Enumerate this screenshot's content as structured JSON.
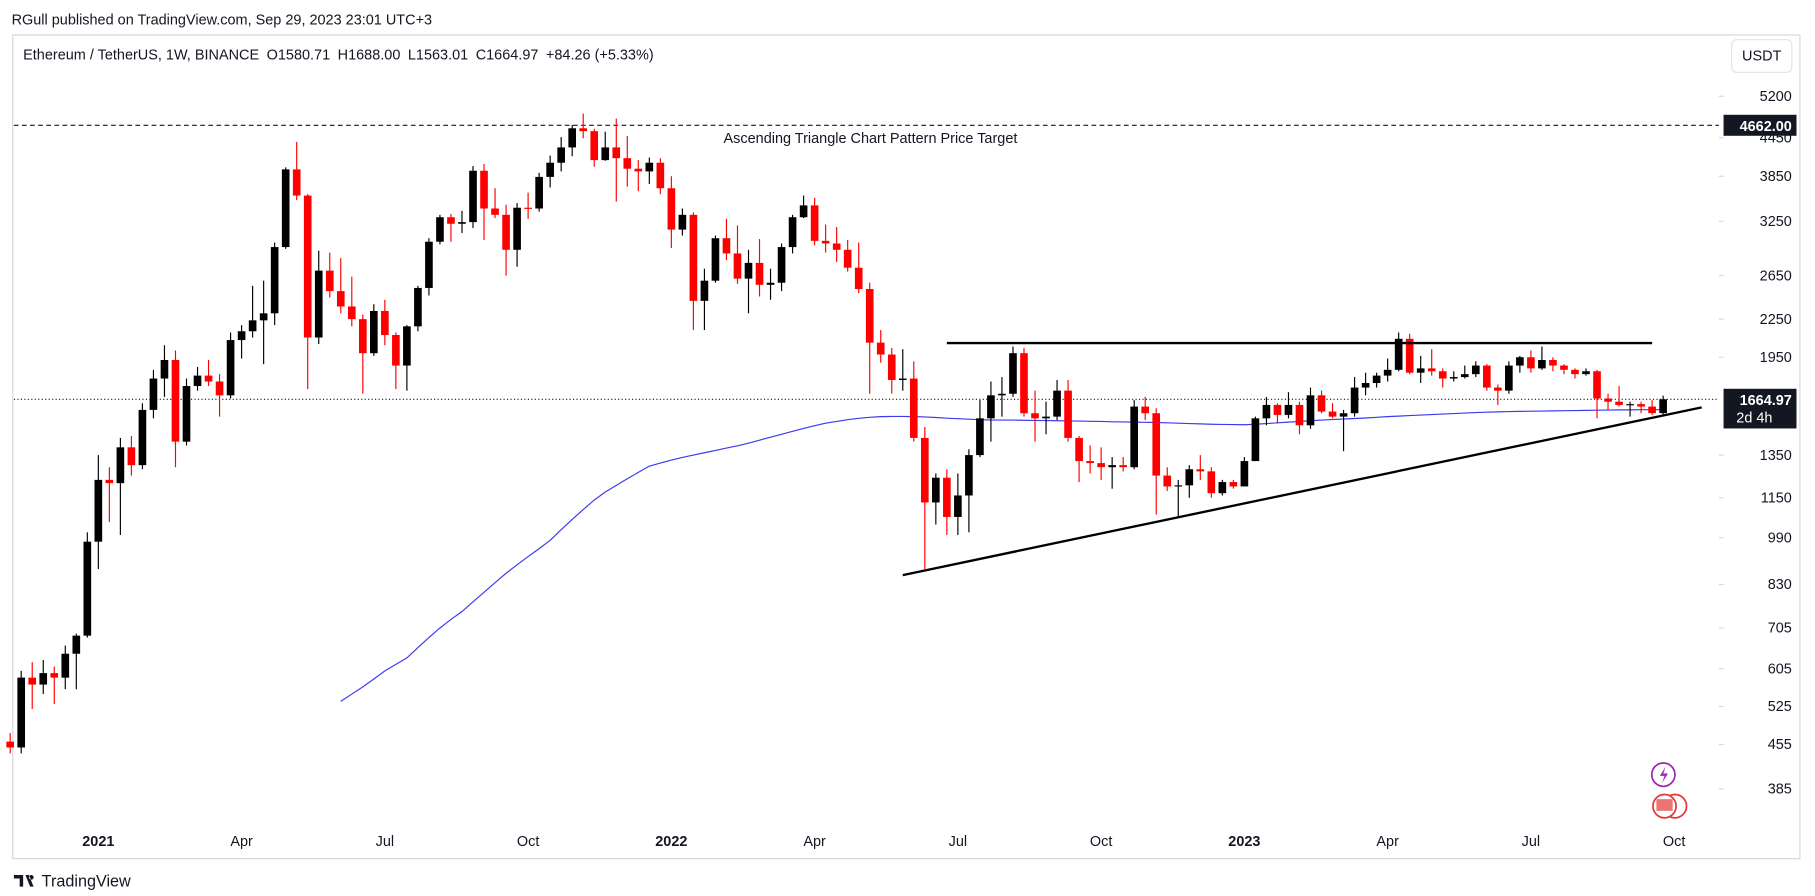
{
  "chart_data": {
    "type": "candlestick",
    "caption": "RGull published on TradingView.com, Sep 29, 2023 23:01 UTC+3",
    "title": "Ethereum / TetherUS, 1W, BINANCE",
    "ohlc_letters": [
      "O",
      "H",
      "L",
      "C"
    ],
    "ohlc_labels": [
      "1580.71",
      "1688.00",
      "1563.01",
      "1664.97"
    ],
    "change": "+84.26 (+5.33%)",
    "currency": "USDT",
    "countdown": "2d 4h",
    "brand": "TradingView",
    "annotation": "Ascending Triangle Chart Pattern Price Target",
    "target": {
      "value": 4662,
      "label": "4662.00"
    },
    "log": true,
    "up_color": "#000000",
    "down_color": "#ff0000",
    "ylim": [
      335,
      6545
    ],
    "yticks": [
      385,
      455,
      525,
      605,
      705,
      830,
      990,
      1150,
      1350,
      1950,
      2250,
      2650,
      3250,
      3850,
      4450,
      5200
    ],
    "categories": [
      null,
      null,
      null,
      null,
      null,
      null,
      null,
      null,
      "2021",
      null,
      null,
      null,
      null,
      null,
      null,
      null,
      null,
      null,
      null,
      null,
      null,
      "Apr",
      null,
      null,
      null,
      null,
      null,
      null,
      null,
      null,
      null,
      null,
      null,
      null,
      "Jul",
      null,
      null,
      null,
      null,
      null,
      null,
      null,
      null,
      null,
      null,
      null,
      null,
      "Oct",
      null,
      null,
      null,
      null,
      null,
      null,
      null,
      null,
      null,
      null,
      null,
      null,
      "2022",
      null,
      null,
      null,
      null,
      null,
      null,
      null,
      null,
      null,
      null,
      null,
      null,
      "Apr",
      null,
      null,
      null,
      null,
      null,
      null,
      null,
      null,
      null,
      null,
      null,
      null,
      "Jul",
      null,
      null,
      null,
      null,
      null,
      null,
      null,
      null,
      null,
      null,
      null,
      null,
      "Oct",
      null,
      null,
      null,
      null,
      null,
      null,
      null,
      null,
      null,
      null,
      null,
      null,
      "2023",
      null,
      null,
      null,
      null,
      null,
      null,
      null,
      null,
      null,
      null,
      null,
      null,
      "Apr",
      null,
      null,
      null,
      null,
      null,
      null,
      null,
      null,
      null,
      null,
      null,
      null,
      "Jul",
      null,
      null,
      null,
      null,
      null,
      null,
      null,
      null,
      null,
      null,
      null,
      null,
      "Oct"
    ],
    "candles": [
      [
        460,
        475,
        440,
        450
      ],
      [
        450,
        600,
        440,
        585
      ],
      [
        585,
        620,
        520,
        570
      ],
      [
        570,
        625,
        550,
        595
      ],
      [
        595,
        610,
        530,
        585
      ],
      [
        585,
        660,
        560,
        640
      ],
      [
        640,
        690,
        560,
        685
      ],
      [
        685,
        1010,
        680,
        975
      ],
      [
        975,
        1350,
        880,
        1230
      ],
      [
        1230,
        1290,
        1050,
        1215
      ],
      [
        1215,
        1440,
        1000,
        1390
      ],
      [
        1390,
        1450,
        1250,
        1300
      ],
      [
        1300,
        1640,
        1280,
        1600
      ],
      [
        1600,
        1860,
        1550,
        1800
      ],
      [
        1800,
        2040,
        1680,
        1930
      ],
      [
        1930,
        2000,
        1290,
        1420
      ],
      [
        1420,
        1800,
        1400,
        1750
      ],
      [
        1750,
        1880,
        1720,
        1820
      ],
      [
        1820,
        1930,
        1750,
        1780
      ],
      [
        1780,
        1830,
        1560,
        1690
      ],
      [
        1690,
        2140,
        1670,
        2080
      ],
      [
        2080,
        2200,
        1940,
        2150
      ],
      [
        2150,
        2550,
        2100,
        2240
      ],
      [
        2240,
        2600,
        1900,
        2300
      ],
      [
        2300,
        3000,
        2200,
        2950
      ],
      [
        2950,
        3980,
        2930,
        3950
      ],
      [
        3950,
        4380,
        3520,
        3580
      ],
      [
        3580,
        3600,
        1730,
        2100
      ],
      [
        2100,
        2910,
        2050,
        2700
      ],
      [
        2700,
        2890,
        2440,
        2500
      ],
      [
        2500,
        2830,
        2300,
        2360
      ],
      [
        2360,
        2640,
        2190,
        2250
      ],
      [
        2250,
        2290,
        1700,
        1980
      ],
      [
        1980,
        2380,
        1960,
        2320
      ],
      [
        2320,
        2420,
        2040,
        2120
      ],
      [
        2120,
        2140,
        1730,
        1890
      ],
      [
        1890,
        2200,
        1720,
        2190
      ],
      [
        2190,
        2550,
        2150,
        2530
      ],
      [
        2530,
        3050,
        2460,
        3010
      ],
      [
        3010,
        3330,
        2980,
        3300
      ],
      [
        3300,
        3340,
        3010,
        3220
      ],
      [
        3220,
        3380,
        3110,
        3240
      ],
      [
        3240,
        4000,
        3170,
        3930
      ],
      [
        3930,
        4030,
        3030,
        3410
      ],
      [
        3410,
        3680,
        3290,
        3330
      ],
      [
        3330,
        3460,
        2650,
        2920
      ],
      [
        2920,
        3480,
        2740,
        3420
      ],
      [
        3420,
        3620,
        3280,
        3410
      ],
      [
        3410,
        3900,
        3370,
        3840
      ],
      [
        3840,
        4160,
        3690,
        4050
      ],
      [
        4050,
        4460,
        3920,
        4290
      ],
      [
        4290,
        4670,
        4150,
        4610
      ],
      [
        4610,
        4870,
        4440,
        4560
      ],
      [
        4560,
        4600,
        3990,
        4090
      ],
      [
        4090,
        4550,
        4080,
        4290
      ],
      [
        4290,
        4780,
        3500,
        4120
      ],
      [
        4120,
        4480,
        3700,
        3960
      ],
      [
        3960,
        4090,
        3640,
        3920
      ],
      [
        3920,
        4130,
        3740,
        4050
      ],
      [
        4050,
        4120,
        3600,
        3680
      ],
      [
        3680,
        3850,
        2940,
        3150
      ],
      [
        3150,
        3410,
        3080,
        3330
      ],
      [
        3330,
        3360,
        2160,
        2410
      ],
      [
        2410,
        2720,
        2160,
        2600
      ],
      [
        2600,
        3080,
        2580,
        3050
      ],
      [
        3050,
        3280,
        2810,
        2880
      ],
      [
        2880,
        3200,
        2570,
        2620
      ],
      [
        2620,
        2920,
        2300,
        2780
      ],
      [
        2780,
        3040,
        2450,
        2560
      ],
      [
        2560,
        2720,
        2420,
        2580
      ],
      [
        2580,
        2990,
        2500,
        2950
      ],
      [
        2950,
        3330,
        2880,
        3300
      ],
      [
        3300,
        3580,
        3290,
        3450
      ],
      [
        3450,
        3550,
        2970,
        3020
      ],
      [
        3020,
        3210,
        2890,
        2990
      ],
      [
        2990,
        3180,
        2790,
        2920
      ],
      [
        2920,
        3030,
        2690,
        2730
      ],
      [
        2730,
        3000,
        2480,
        2520
      ],
      [
        2520,
        2580,
        1700,
        2060
      ],
      [
        2060,
        2160,
        1910,
        1970
      ],
      [
        1970,
        2020,
        1700,
        1790
      ],
      [
        1790,
        2010,
        1720,
        1800
      ],
      [
        1800,
        1920,
        1420,
        1440
      ],
      [
        1440,
        1500,
        880,
        1130
      ],
      [
        1130,
        1260,
        1040,
        1240
      ],
      [
        1240,
        1280,
        1000,
        1070
      ],
      [
        1070,
        1260,
        1000,
        1160
      ],
      [
        1160,
        1380,
        1010,
        1350
      ],
      [
        1350,
        1660,
        1340,
        1550
      ],
      [
        1550,
        1780,
        1420,
        1690
      ],
      [
        1690,
        1810,
        1560,
        1700
      ],
      [
        1700,
        2030,
        1680,
        1980
      ],
      [
        1980,
        2020,
        1560,
        1580
      ],
      [
        1580,
        1720,
        1420,
        1550
      ],
      [
        1550,
        1650,
        1460,
        1560
      ],
      [
        1560,
        1790,
        1540,
        1720
      ],
      [
        1720,
        1790,
        1420,
        1440
      ],
      [
        1440,
        1450,
        1220,
        1320
      ],
      [
        1320,
        1400,
        1260,
        1310
      ],
      [
        1310,
        1390,
        1230,
        1290
      ],
      [
        1290,
        1340,
        1190,
        1300
      ],
      [
        1300,
        1340,
        1270,
        1290
      ],
      [
        1290,
        1660,
        1280,
        1620
      ],
      [
        1620,
        1680,
        1540,
        1580
      ],
      [
        1580,
        1610,
        1080,
        1250
      ],
      [
        1250,
        1290,
        1180,
        1200
      ],
      [
        1200,
        1230,
        1070,
        1205
      ],
      [
        1205,
        1300,
        1150,
        1280
      ],
      [
        1280,
        1350,
        1230,
        1270
      ],
      [
        1270,
        1290,
        1150,
        1170
      ],
      [
        1170,
        1230,
        1160,
        1220
      ],
      [
        1220,
        1230,
        1190,
        1200
      ],
      [
        1200,
        1340,
        1200,
        1320
      ],
      [
        1320,
        1560,
        1320,
        1550
      ],
      [
        1550,
        1680,
        1510,
        1630
      ],
      [
        1630,
        1640,
        1520,
        1570
      ],
      [
        1570,
        1710,
        1550,
        1630
      ],
      [
        1630,
        1650,
        1460,
        1510
      ],
      [
        1510,
        1740,
        1490,
        1690
      ],
      [
        1690,
        1720,
        1580,
        1590
      ],
      [
        1590,
        1640,
        1550,
        1560
      ],
      [
        1560,
        1600,
        1370,
        1580
      ],
      [
        1580,
        1810,
        1560,
        1740
      ],
      [
        1740,
        1840,
        1690,
        1770
      ],
      [
        1770,
        1840,
        1740,
        1820
      ],
      [
        1820,
        1940,
        1780,
        1860
      ],
      [
        1860,
        2140,
        1850,
        2090
      ],
      [
        2090,
        2130,
        1830,
        1840
      ],
      [
        1840,
        1960,
        1770,
        1870
      ],
      [
        1870,
        2010,
        1820,
        1850
      ],
      [
        1850,
        1870,
        1740,
        1800
      ],
      [
        1800,
        1850,
        1780,
        1810
      ],
      [
        1810,
        1890,
        1800,
        1830
      ],
      [
        1830,
        1920,
        1810,
        1890
      ],
      [
        1890,
        1900,
        1720,
        1740
      ],
      [
        1740,
        1760,
        1630,
        1720
      ],
      [
        1720,
        1920,
        1700,
        1890
      ],
      [
        1890,
        1960,
        1840,
        1950
      ],
      [
        1950,
        2000,
        1840,
        1870
      ],
      [
        1870,
        2030,
        1860,
        1930
      ],
      [
        1930,
        1950,
        1850,
        1890
      ],
      [
        1890,
        1900,
        1830,
        1860
      ],
      [
        1860,
        1870,
        1800,
        1830
      ],
      [
        1830,
        1870,
        1820,
        1850
      ],
      [
        1850,
        1860,
        1550,
        1670
      ],
      [
        1670,
        1700,
        1600,
        1650
      ],
      [
        1650,
        1750,
        1620,
        1630
      ],
      [
        1630,
        1650,
        1560,
        1635
      ],
      [
        1635,
        1650,
        1580,
        1620
      ],
      [
        1620,
        1660,
        1570,
        1580.71
      ],
      [
        1580.71,
        1688,
        1563.01,
        1664.97
      ],
      null
    ],
    "series": [
      {
        "color": "#3a3af0",
        "values": [
          null,
          null,
          null,
          null,
          null,
          null,
          null,
          null,
          null,
          null,
          null,
          null,
          null,
          null,
          null,
          null,
          null,
          null,
          null,
          null,
          null,
          null,
          null,
          null,
          null,
          null,
          null,
          null,
          null,
          null,
          535,
          550,
          565,
          582,
          600,
          615,
          630,
          655,
          680,
          705,
          728,
          750,
          778,
          806,
          836,
          866,
          894,
          922,
          950,
          980,
          1020,
          1060,
          1100,
          1140,
          1175,
          1205,
          1235,
          1265,
          1295,
          1310,
          1325,
          1338,
          1350,
          1362,
          1374,
          1386,
          1398,
          1412,
          1428,
          1444,
          1460,
          1476,
          1492,
          1508,
          1522,
          1532,
          1542,
          1550,
          1556,
          1560,
          1561,
          1561,
          1560,
          1558,
          1555,
          1551,
          1548,
          1545,
          1542,
          1540,
          1540,
          1540,
          1539,
          1538,
          1537,
          1536,
          1535,
          1534,
          1533,
          1532,
          1530,
          1529,
          1528,
          1527,
          1526,
          1524,
          1522,
          1520,
          1518,
          1516,
          1515,
          1514,
          1513,
          1516,
          1520,
          1524,
          1528,
          1532,
          1536,
          1540,
          1543,
          1546,
          1549,
          1552,
          1556,
          1560,
          1563,
          1566,
          1569,
          1572,
          1575,
          1578,
          1581,
          1584,
          1586,
          1588,
          1590,
          1591,
          1592,
          1593,
          1594,
          1595,
          1596,
          1597,
          1598,
          1599,
          1600,
          1600,
          1601,
          1601,
          1601,
          null
        ]
      }
    ],
    "trendlines": [
      {
        "start": [
          81,
          860
        ],
        "end": [
          153.5,
          1615
        ]
      },
      {
        "start": [
          85,
          2057
        ],
        "end": [
          149,
          2057
        ]
      }
    ]
  }
}
